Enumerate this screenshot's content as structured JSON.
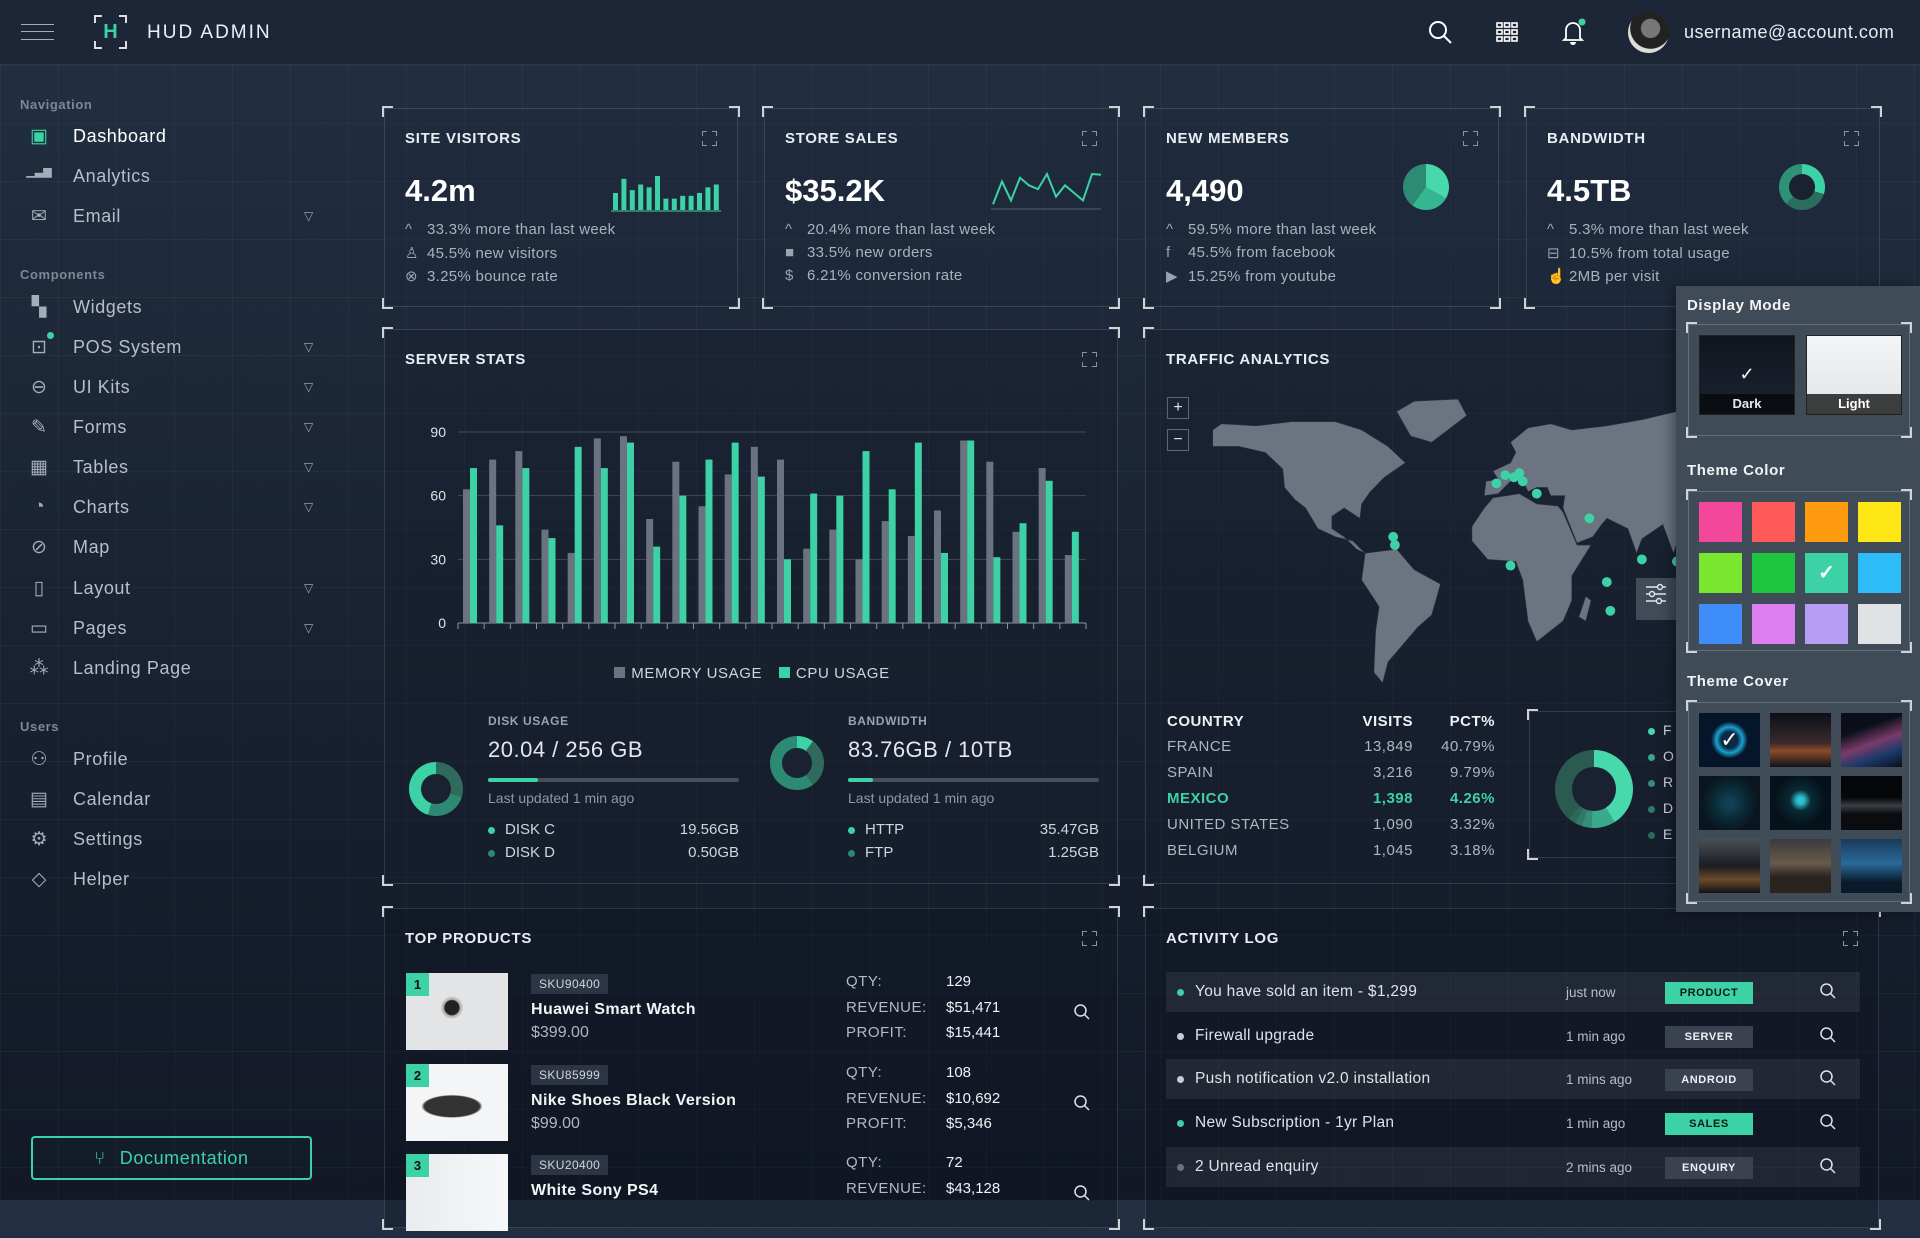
{
  "header": {
    "brand_letter": "H",
    "title": "HUD ADMIN",
    "user_email": "username@account.com",
    "icons": [
      "menu-icon",
      "search-icon",
      "apps-grid-icon",
      "bell-icon"
    ]
  },
  "sidebar": {
    "sections": [
      {
        "label": "Navigation",
        "items": [
          {
            "label": "Dashboard",
            "icon": "cpu-icon",
            "active": true,
            "has_submenu": false
          },
          {
            "label": "Analytics",
            "icon": "bar-chart-icon",
            "has_submenu": false
          },
          {
            "label": "Email",
            "icon": "envelope-icon",
            "has_submenu": true
          }
        ]
      },
      {
        "label": "Components",
        "items": [
          {
            "label": "Widgets",
            "icon": "widgets-icon",
            "has_submenu": false
          },
          {
            "label": "POS System",
            "icon": "bag-check-icon",
            "has_submenu": true,
            "badge_dot": true
          },
          {
            "label": "UI Kits",
            "icon": "controller-icon",
            "has_submenu": true
          },
          {
            "label": "Forms",
            "icon": "pen-icon",
            "has_submenu": true
          },
          {
            "label": "Tables",
            "icon": "table-icon",
            "has_submenu": true
          },
          {
            "label": "Charts",
            "icon": "pie-chart-icon",
            "has_submenu": true
          },
          {
            "label": "Map",
            "icon": "compass-icon",
            "has_submenu": false
          },
          {
            "label": "Layout",
            "icon": "layout-sidebar-icon",
            "has_submenu": true
          },
          {
            "label": "Pages",
            "icon": "collection-icon",
            "has_submenu": true
          },
          {
            "label": "Landing Page",
            "icon": "diagram-icon",
            "has_submenu": false
          }
        ]
      },
      {
        "label": "Users",
        "items": [
          {
            "label": "Profile",
            "icon": "people-icon",
            "has_submenu": false
          },
          {
            "label": "Calendar",
            "icon": "calendar-icon",
            "has_submenu": false
          },
          {
            "label": "Settings",
            "icon": "gear-icon",
            "has_submenu": false
          },
          {
            "label": "Helper",
            "icon": "gem-icon",
            "has_submenu": false
          }
        ]
      }
    ],
    "documentation_label": "Documentation"
  },
  "stat_cards": [
    {
      "title": "SITE VISITORS",
      "value": "4.2m",
      "lines": [
        {
          "icon": "chevron-up-icon",
          "text": "33.3% more than last week"
        },
        {
          "icon": "person-icon",
          "text": "45.5% new visitors"
        },
        {
          "icon": "x-circle-icon",
          "text": "3.25% bounce rate"
        }
      ],
      "sparkline": {
        "type": "bar",
        "values": [
          6,
          11,
          7,
          9,
          8,
          12,
          4,
          4,
          5,
          5,
          6,
          8,
          9
        ]
      }
    },
    {
      "title": "STORE SALES",
      "value": "$35.2K",
      "lines": [
        {
          "icon": "chevron-up-icon",
          "text": "20.4% more than last week"
        },
        {
          "icon": "bag-icon",
          "text": "33.5% new orders"
        },
        {
          "icon": "dollar-icon",
          "text": "6.21% conversion rate"
        }
      ],
      "sparkline": {
        "type": "line",
        "values": [
          1,
          7,
          2,
          8,
          6,
          5,
          9,
          3,
          6,
          4,
          2,
          9,
          8.8
        ]
      }
    },
    {
      "title": "NEW MEMBERS",
      "value": "4,490",
      "lines": [
        {
          "icon": "chevron-up-icon",
          "text": "59.5% more than last week"
        },
        {
          "icon": "facebook-icon",
          "text": "45.5% from facebook"
        },
        {
          "icon": "youtube-icon",
          "text": "15.25% from youtube"
        }
      ],
      "pie": [
        33,
        27,
        40
      ]
    },
    {
      "title": "BANDWIDTH",
      "value": "4.5TB",
      "lines": [
        {
          "icon": "chevron-up-icon",
          "text": "5.3% more than last week"
        },
        {
          "icon": "hdd-icon",
          "text": "10.5% from total usage"
        },
        {
          "icon": "hand-pointer-icon",
          "text": "2MB per visit"
        }
      ],
      "donut": [
        30,
        70
      ]
    }
  ],
  "server_stats": {
    "title": "SERVER STATS",
    "disk": {
      "label": "DISK USAGE",
      "value": "20.04 / 256 GB",
      "progress_pct": 20,
      "updated": "Last updated 1 min ago",
      "items": [
        {
          "name": "DISK C",
          "value": "19.56GB"
        },
        {
          "name": "DISK D",
          "value": "0.50GB"
        }
      ]
    },
    "bandwidth": {
      "label": "BANDWIDTH",
      "value": "83.76GB / 10TB",
      "progress_pct": 10,
      "updated": "Last updated 1 min ago",
      "items": [
        {
          "name": "HTTP",
          "value": "35.47GB"
        },
        {
          "name": "FTP",
          "value": "1.25GB"
        }
      ]
    }
  },
  "chart_data": {
    "type": "bar",
    "title": "",
    "xlabel": "",
    "ylabel": "",
    "ylim": [
      0,
      90
    ],
    "yticks": [
      "0",
      "30",
      "60",
      "90"
    ],
    "grid": true,
    "legend": "bottom",
    "series": [
      {
        "name": "MEMORY USAGE",
        "color": "#6b7280",
        "values": [
          63,
          77,
          81,
          44,
          33,
          87,
          88,
          49,
          76,
          55,
          70,
          83,
          77,
          35,
          44,
          30,
          48,
          41,
          53,
          86,
          76,
          43,
          73,
          32
        ]
      },
      {
        "name": "CPU USAGE",
        "color": "#3cd2a5",
        "values": [
          73,
          46,
          73,
          40,
          83,
          73,
          85,
          36,
          60,
          77,
          85,
          69,
          30,
          61,
          60,
          81,
          63,
          85,
          33,
          86,
          31,
          47,
          67,
          43
        ]
      }
    ]
  },
  "traffic": {
    "title": "TRAFFIC ANALYTICS",
    "zoom_in": "+",
    "zoom_out": "−",
    "columns": [
      "COUNTRY",
      "VISITS",
      "PCT%"
    ],
    "rows": [
      {
        "country": "FRANCE",
        "visits": "13,849",
        "pct": "40.79%"
      },
      {
        "country": "SPAIN",
        "visits": "3,216",
        "pct": "9.79%"
      },
      {
        "country": "MEXICO",
        "visits": "1,398",
        "pct": "4.26%",
        "highlight": true
      },
      {
        "country": "UNITED STATES",
        "visits": "1,090",
        "pct": "3.32%"
      },
      {
        "country": "BELGIUM",
        "visits": "1,045",
        "pct": "3.18%"
      }
    ],
    "legend_visible_letters": [
      "F",
      "O",
      "R",
      "D",
      "E"
    ],
    "donut": [
      41,
      10,
      4,
      3,
      3,
      39
    ]
  },
  "theme_panel": {
    "display_mode_title": "Display Mode",
    "modes": [
      {
        "label": "Dark",
        "selected": true
      },
      {
        "label": "Light",
        "selected": false
      }
    ],
    "theme_color_title": "Theme Color",
    "colors": [
      "#f2479b",
      "#ff5a5a",
      "#ff9b0f",
      "#fde613",
      "#7ae72f",
      "#1ec63f",
      "#3cd2a5",
      "#2ebcf8",
      "#3e8cf7",
      "#dd7ef1",
      "#b69ef4",
      "#e0e3e6"
    ],
    "selected_color": "#3cd2a5",
    "theme_cover_title": "Theme Cover",
    "covers": 9,
    "selected_cover": 0
  },
  "top_products": {
    "title": "TOP PRODUCTS",
    "items": [
      {
        "rank": "1",
        "sku": "SKU90400",
        "name": "Huawei Smart Watch",
        "price": "$399.00",
        "qty_label": "QTY:",
        "qty": "129",
        "revenue_label": "REVENUE:",
        "revenue": "$51,471",
        "profit_label": "PROFIT:",
        "profit": "$15,441"
      },
      {
        "rank": "2",
        "sku": "SKU85999",
        "name": "Nike Shoes Black Version",
        "price": "$99.00",
        "qty_label": "QTY:",
        "qty": "108",
        "revenue_label": "REVENUE:",
        "revenue": "$10,692",
        "profit_label": "PROFIT:",
        "profit": "$5,346"
      },
      {
        "rank": "3",
        "sku": "SKU20400",
        "name": "White Sony PS4",
        "price": "",
        "qty_label": "QTY:",
        "qty": "72",
        "revenue_label": "REVENUE:",
        "revenue": "$43,128",
        "profit_label": "",
        "profit": ""
      }
    ]
  },
  "activity_log": {
    "title": "ACTIVITY LOG",
    "items": [
      {
        "text": "You have sold an item - $1,299",
        "time": "just now",
        "tag": "PRODUCT",
        "accent": true,
        "dot": "#3cd2a5"
      },
      {
        "text": "Firewall upgrade",
        "time": "1 min ago",
        "tag": "SERVER",
        "accent": false,
        "dot": "#c8ccd2"
      },
      {
        "text": "Push notification v2.0 installation",
        "time": "1 mins ago",
        "tag": "ANDROID",
        "accent": false,
        "dot": "#c8ccd2"
      },
      {
        "text": "New Subscription - 1yr Plan",
        "time": "1 min ago",
        "tag": "SALES",
        "accent": true,
        "dot": "#3cd2a5"
      },
      {
        "text": "2 Unread enquiry",
        "time": "2 mins ago",
        "tag": "ENQUIRY",
        "accent": false,
        "dot": "#6b7280"
      }
    ]
  },
  "colors": {
    "accent": "#3cd2a5",
    "background": "#1a2434",
    "panel_overlay": "#3f4b57"
  }
}
